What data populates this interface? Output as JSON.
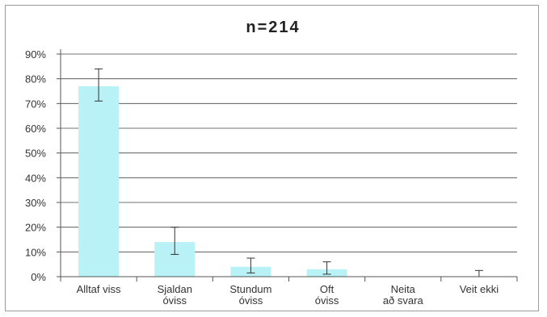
{
  "chart_data": {
    "type": "bar",
    "title": "n=214",
    "categories": [
      [
        "Alltaf viss"
      ],
      [
        "Sjaldan",
        "óviss"
      ],
      [
        "Stundum",
        "óviss"
      ],
      [
        "Oft",
        "óviss"
      ],
      [
        "Neita",
        "að svara"
      ],
      [
        "Veit ekki"
      ]
    ],
    "values": [
      77,
      14,
      4,
      3,
      0,
      0
    ],
    "error_bars": [
      {
        "low": 71,
        "high": 84
      },
      {
        "low": 9,
        "high": 20
      },
      {
        "low": 1.5,
        "high": 7.5
      },
      {
        "low": 1,
        "high": 6
      },
      {
        "low": 0,
        "high": 0
      },
      {
        "low": 0,
        "high": 2.5
      }
    ],
    "y_ticks": [
      "0%",
      "10%",
      "20%",
      "30%",
      "40%",
      "50%",
      "60%",
      "70%",
      "80%",
      "90%"
    ],
    "ylim": [
      0,
      90
    ],
    "grid": true,
    "colors": {
      "bar": "#b8f2f6",
      "grid": "#444444",
      "axis": "#555555",
      "error": "#333333"
    }
  }
}
